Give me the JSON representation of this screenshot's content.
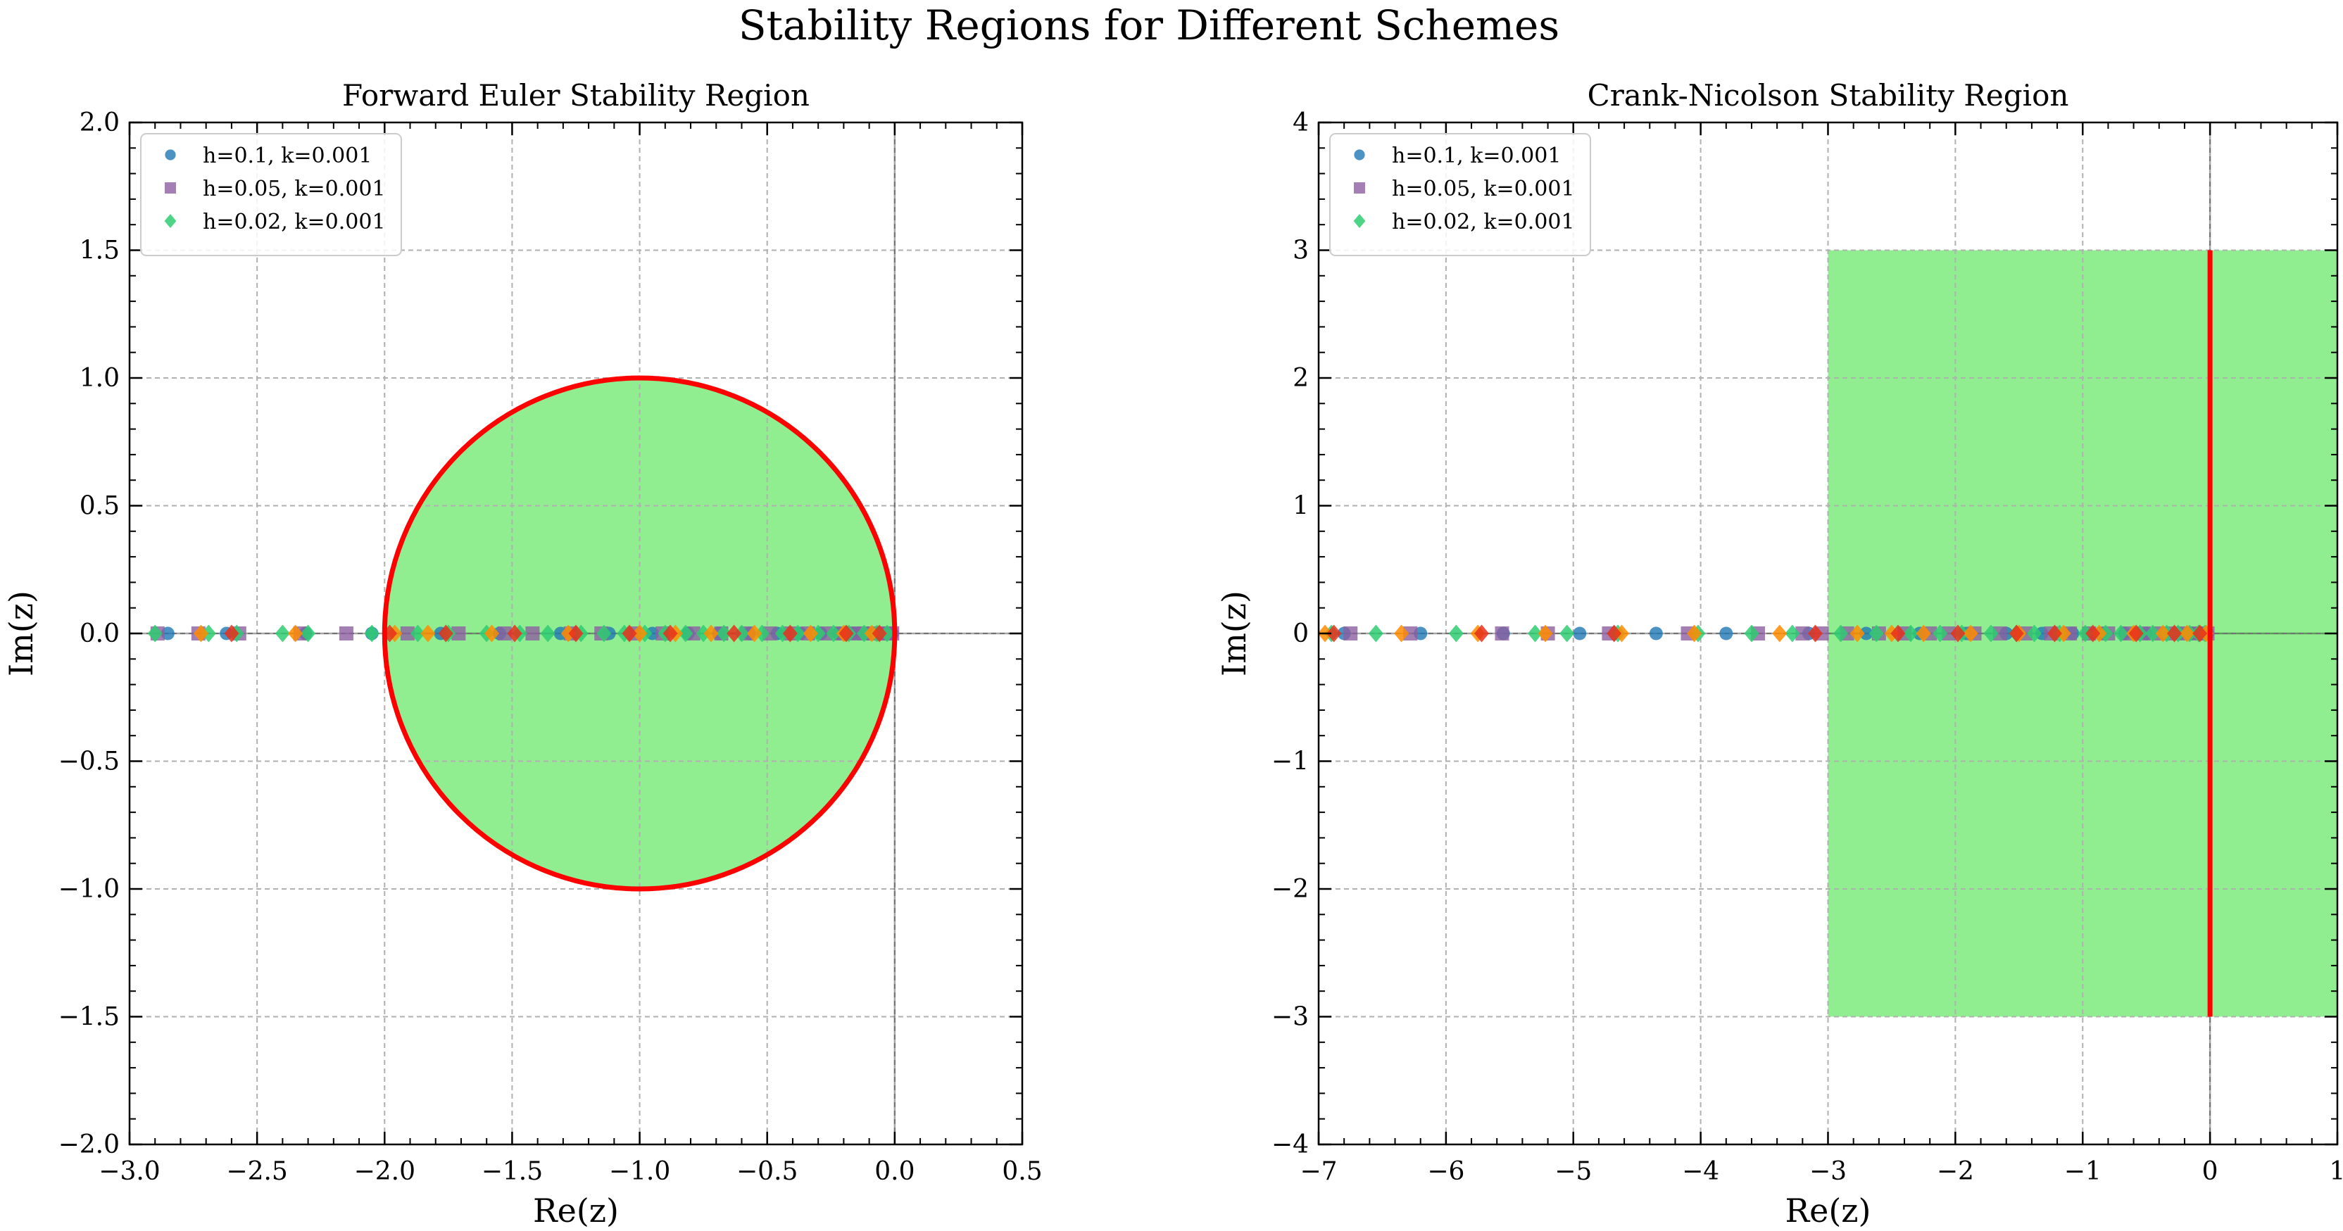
{
  "figure": {
    "title": "Stability Regions for Different Schemes"
  },
  "chart_data": [
    {
      "type": "scatter",
      "title": "Forward Euler Stability Region",
      "xlabel": "Re(z)",
      "ylabel": "Im(z)",
      "xlim": [
        -3.0,
        0.5
      ],
      "ylim": [
        -2.0,
        2.0
      ],
      "xticks": [
        -3.0,
        -2.5,
        -2.0,
        -1.5,
        -1.0,
        -0.5,
        0.0,
        0.5
      ],
      "yticks": [
        -2.0,
        -1.5,
        -1.0,
        -0.5,
        0.0,
        0.5,
        1.0,
        1.5,
        2.0
      ],
      "xticklabels": [
        "−3.0",
        "−2.5",
        "−2.0",
        "−1.5",
        "−1.0",
        "−0.5",
        "0.0",
        "0.5"
      ],
      "yticklabels": [
        "−2.0",
        "−1.5",
        "−1.0",
        "−0.5",
        "0.0",
        "0.5",
        "1.0",
        "1.5",
        "2.0"
      ],
      "grid": true,
      "legend_position": "top-left",
      "region": {
        "shape": "disk",
        "center": [
          -1,
          0
        ],
        "radius": 1,
        "fill": "#90ee90",
        "boundary_color": "#ff0000"
      },
      "series": [
        {
          "name": "h=0.1, k=0.001",
          "marker": "circle",
          "color": "#1f77b4",
          "x": [
            -2.85,
            -2.62,
            -2.31,
            -2.05,
            -1.78,
            -1.55,
            -1.31,
            -1.12,
            -0.95,
            -0.81,
            -0.69,
            -0.57,
            -0.46,
            -0.37,
            -0.29,
            -0.22,
            -0.16,
            -0.11,
            -0.07,
            -0.04,
            -0.02,
            -0.01
          ],
          "y": [
            0,
            0,
            0,
            0,
            0,
            0,
            0,
            0,
            0,
            0,
            0,
            0,
            0,
            0,
            0,
            0,
            0,
            0,
            0,
            0,
            0,
            0
          ]
        },
        {
          "name": "h=0.05, k=0.001",
          "marker": "square",
          "color": "#8c5fa0",
          "x": [
            -2.89,
            -2.73,
            -2.57,
            -2.33,
            -2.15,
            -1.91,
            -1.71,
            -1.53,
            -1.42,
            -1.27,
            -1.15,
            -1.02,
            -0.91,
            -0.79,
            -0.68,
            -0.58,
            -0.49,
            -0.41,
            -0.34,
            -0.27,
            -0.21,
            -0.16,
            -0.12,
            -0.08,
            -0.05,
            -0.03,
            -0.01
          ],
          "y": [
            0,
            0,
            0,
            0,
            0,
            0,
            0,
            0,
            0,
            0,
            0,
            0,
            0,
            0,
            0,
            0,
            0,
            0,
            0,
            0,
            0,
            0,
            0,
            0,
            0,
            0,
            0
          ]
        },
        {
          "name": "h=0.02, k=0.001",
          "marker": "diamond",
          "color": "#2ecc71",
          "x": [
            -2.9,
            -2.69,
            -2.58,
            -2.4,
            -2.3,
            -2.05,
            -1.87,
            -1.75,
            -1.6,
            -1.47,
            -1.36,
            -1.23,
            -1.14,
            -1.06,
            -0.98,
            -0.9,
            -0.82,
            -0.75,
            -0.67,
            -0.6,
            -0.52,
            -0.44,
            -0.38,
            -0.3,
            -0.24,
            -0.18,
            -0.12,
            -0.07,
            -0.03
          ],
          "y": [
            0,
            0,
            0,
            0,
            0,
            0,
            0,
            0,
            0,
            0,
            0,
            0,
            0,
            0,
            0,
            0,
            0,
            0,
            0,
            0,
            0,
            0,
            0,
            0,
            0,
            0,
            0,
            0,
            0
          ]
        },
        {
          "marker": "diamond",
          "color": "#ff8c00",
          "x": [
            -2.72,
            -2.35,
            -1.96,
            -1.83,
            -1.58,
            -1.28,
            -1.0,
            -0.86,
            -0.72,
            -0.55,
            -0.33,
            -0.2,
            -0.09
          ],
          "y": [
            0,
            0,
            0,
            0,
            0,
            0,
            0,
            0,
            0,
            0,
            0,
            0,
            0
          ]
        },
        {
          "marker": "diamond",
          "color": "#e8301c",
          "x": [
            -2.6,
            -1.98,
            -1.76,
            -1.49,
            -1.25,
            -1.04,
            -0.88,
            -0.63,
            -0.41,
            -0.19,
            -0.06
          ],
          "y": [
            0,
            0,
            0,
            0,
            0,
            0,
            0,
            0,
            0,
            0,
            0
          ]
        }
      ]
    },
    {
      "type": "scatter",
      "title": "Crank-Nicolson Stability Region",
      "xlabel": "Re(z)",
      "ylabel": "Im(z)",
      "xlim": [
        -7,
        1
      ],
      "ylim": [
        -4,
        4
      ],
      "xticks": [
        -7,
        -6,
        -5,
        -4,
        -3,
        -2,
        -1,
        0,
        1
      ],
      "yticks": [
        -4,
        -3,
        -2,
        -1,
        0,
        1,
        2,
        3,
        4
      ],
      "xticklabels": [
        "−7",
        "−6",
        "−5",
        "−4",
        "−3",
        "−2",
        "−1",
        "0",
        "1"
      ],
      "yticklabels": [
        "−4",
        "−3",
        "−2",
        "−1",
        "0",
        "1",
        "2",
        "3",
        "4"
      ],
      "grid": true,
      "legend_position": "top-left",
      "region": {
        "shape": "rect",
        "x": [
          -3,
          1
        ],
        "y": [
          -3,
          3
        ],
        "fill": "#90ee90",
        "boundary_x": 0,
        "boundary_y": [
          -3,
          3
        ],
        "boundary_color": "#ff0000"
      },
      "series": [
        {
          "name": "h=0.1, k=0.001",
          "marker": "circle",
          "color": "#1f77b4",
          "x": [
            -6.8,
            -6.2,
            -5.55,
            -4.95,
            -4.35,
            -3.8,
            -3.15,
            -2.7,
            -2.28,
            -1.92,
            -1.6,
            -1.32,
            -1.08,
            -0.86,
            -0.67,
            -0.5,
            -0.36,
            -0.24,
            -0.14,
            -0.07,
            -0.02
          ],
          "y": [
            0,
            0,
            0,
            0,
            0,
            0,
            0,
            0,
            0,
            0,
            0,
            0,
            0,
            0,
            0,
            0,
            0,
            0,
            0,
            0,
            0
          ]
        },
        {
          "name": "h=0.05, k=0.001",
          "marker": "square",
          "color": "#8c5fa0",
          "x": [
            -6.75,
            -6.28,
            -5.56,
            -5.2,
            -4.72,
            -4.1,
            -3.55,
            -3.2,
            -3.05,
            -2.85,
            -2.6,
            -2.4,
            -2.2,
            -2.05,
            -1.85,
            -1.65,
            -1.45,
            -1.25,
            -1.1,
            -0.95,
            -0.8,
            -0.65,
            -0.52,
            -0.4,
            -0.3,
            -0.2,
            -0.12,
            -0.06,
            -0.02
          ],
          "y": [
            0,
            0,
            0,
            0,
            0,
            0,
            0,
            0,
            0,
            0,
            0,
            0,
            0,
            0,
            0,
            0,
            0,
            0,
            0,
            0,
            0,
            0,
            0,
            0,
            0,
            0,
            0,
            0,
            0
          ]
        },
        {
          "name": "h=0.02, k=0.001",
          "marker": "diamond",
          "color": "#2ecc71",
          "x": [
            -6.9,
            -6.55,
            -5.92,
            -5.3,
            -5.05,
            -4.65,
            -4.02,
            -3.6,
            -3.28,
            -2.9,
            -2.62,
            -2.35,
            -2.12,
            -1.95,
            -1.72,
            -1.52,
            -1.38,
            -1.18,
            -0.98,
            -0.82,
            -0.7,
            -0.55,
            -0.45,
            -0.34,
            -0.25,
            -0.16,
            -0.09,
            -0.04
          ],
          "y": [
            0,
            0,
            0,
            0,
            0,
            0,
            0,
            0,
            0,
            0,
            0,
            0,
            0,
            0,
            0,
            0,
            0,
            0,
            0,
            0,
            0,
            0,
            0,
            0,
            0,
            0,
            0,
            0
          ]
        },
        {
          "marker": "diamond",
          "color": "#ff8c00",
          "x": [
            -6.95,
            -6.35,
            -5.75,
            -5.22,
            -4.62,
            -4.05,
            -3.38,
            -2.77,
            -2.5,
            -2.25,
            -1.88,
            -1.5,
            -1.15,
            -0.87,
            -0.6,
            -0.37,
            -0.18,
            -0.03
          ],
          "y": [
            0,
            0,
            0,
            0,
            0,
            0,
            0,
            0,
            0,
            0,
            0,
            0,
            0,
            0,
            0,
            0,
            0,
            0
          ]
        },
        {
          "marker": "diamond",
          "color": "#e8301c",
          "x": [
            -6.88,
            -5.72,
            -4.68,
            -3.1,
            -2.45,
            -1.98,
            -1.52,
            -1.22,
            -0.92,
            -0.58,
            -0.28,
            -0.08
          ],
          "y": [
            0,
            0,
            0,
            0,
            0,
            0,
            0,
            0,
            0,
            0,
            0,
            0
          ]
        }
      ]
    }
  ]
}
